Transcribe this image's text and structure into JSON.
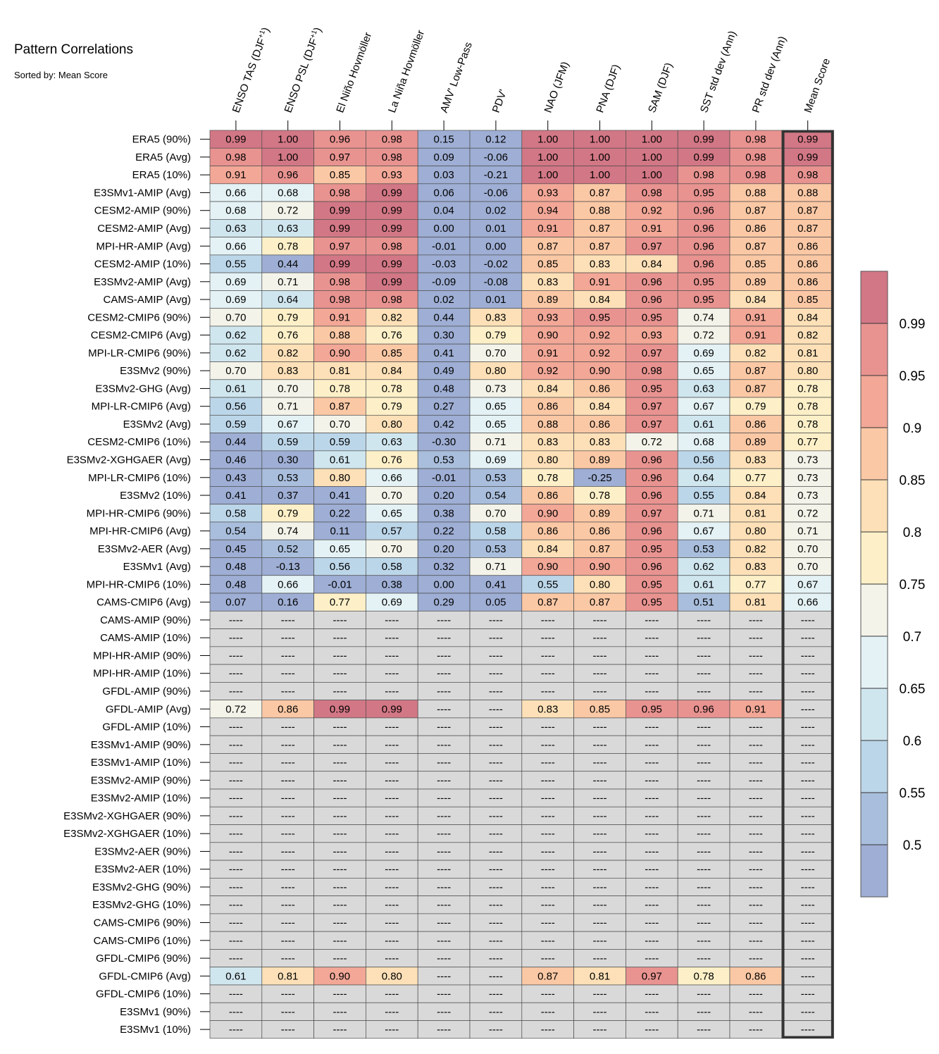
{
  "chart_data": {
    "type": "heatmap",
    "title": "Pattern Correlations",
    "subtitle": "Sorted by: Mean Score",
    "columns": [
      {
        "base": "ENSO TAS (DJF",
        "sup": "+1",
        "tail": ")"
      },
      {
        "base": "ENSO PSL (DJF",
        "sup": "+1",
        "tail": ")"
      },
      {
        "base": "El Niño Hovmöller",
        "sup": "",
        "tail": ""
      },
      {
        "base": "La Niña Hovmöller",
        "sup": "",
        "tail": ""
      },
      {
        "base": "AMV' Low-Pass",
        "sup": "",
        "tail": ""
      },
      {
        "base": "PDV'",
        "sup": "",
        "tail": ""
      },
      {
        "base": "NAO (JFM)",
        "sup": "",
        "tail": ""
      },
      {
        "base": "PNA (DJF)",
        "sup": "",
        "tail": ""
      },
      {
        "base": "SAM (DJF)",
        "sup": "",
        "tail": ""
      },
      {
        "base": "SST std dev (Ann)",
        "sup": "",
        "tail": ""
      },
      {
        "base": "PR std dev (Ann)",
        "sup": "",
        "tail": ""
      },
      {
        "base": "Mean Score",
        "sup": "",
        "tail": ""
      }
    ],
    "missing_label": "----",
    "highlighted_column": "Mean Score",
    "rows": [
      {
        "label": "ERA5 (90%)",
        "values": [
          0.99,
          1.0,
          0.96,
          0.98,
          0.15,
          0.12,
          1.0,
          1.0,
          1.0,
          0.99,
          0.98,
          0.99
        ]
      },
      {
        "label": "ERA5 (Avg)",
        "values": [
          0.98,
          1.0,
          0.97,
          0.98,
          0.09,
          -0.06,
          1.0,
          1.0,
          1.0,
          0.99,
          0.98,
          0.99
        ]
      },
      {
        "label": "ERA5 (10%)",
        "values": [
          0.91,
          0.96,
          0.85,
          0.93,
          0.03,
          -0.21,
          1.0,
          1.0,
          1.0,
          0.98,
          0.98,
          0.98
        ]
      },
      {
        "label": "E3SMv1-AMIP (Avg)",
        "values": [
          0.66,
          0.68,
          0.98,
          0.99,
          0.06,
          -0.06,
          0.93,
          0.87,
          0.98,
          0.95,
          0.88,
          0.88
        ]
      },
      {
        "label": "CESM2-AMIP (90%)",
        "values": [
          0.68,
          0.72,
          0.99,
          0.99,
          0.04,
          0.02,
          0.94,
          0.88,
          0.92,
          0.96,
          0.87,
          0.87
        ]
      },
      {
        "label": "CESM2-AMIP (Avg)",
        "values": [
          0.63,
          0.63,
          0.99,
          0.99,
          -0.0,
          0.01,
          0.91,
          0.87,
          0.91,
          0.96,
          0.86,
          0.87
        ]
      },
      {
        "label": "MPI-HR-AMIP (Avg)",
        "values": [
          0.66,
          0.78,
          0.97,
          0.98,
          -0.01,
          -0.0,
          0.87,
          0.87,
          0.97,
          0.96,
          0.87,
          0.86
        ]
      },
      {
        "label": "CESM2-AMIP (10%)",
        "values": [
          0.55,
          0.44,
          0.99,
          0.99,
          -0.03,
          -0.02,
          0.85,
          0.83,
          0.84,
          0.96,
          0.85,
          0.86
        ]
      },
      {
        "label": "E3SMv2-AMIP (Avg)",
        "values": [
          0.69,
          0.71,
          0.98,
          0.99,
          -0.09,
          -0.08,
          0.83,
          0.91,
          0.96,
          0.95,
          0.89,
          0.86
        ]
      },
      {
        "label": "CAMS-AMIP (Avg)",
        "values": [
          0.69,
          0.64,
          0.98,
          0.98,
          0.02,
          0.01,
          0.89,
          0.84,
          0.96,
          0.95,
          0.84,
          0.85
        ]
      },
      {
        "label": "CESM2-CMIP6 (90%)",
        "values": [
          0.7,
          0.79,
          0.91,
          0.82,
          0.44,
          0.83,
          0.93,
          0.95,
          0.95,
          0.74,
          0.91,
          0.84
        ]
      },
      {
        "label": "CESM2-CMIP6 (Avg)",
        "values": [
          0.62,
          0.76,
          0.88,
          0.76,
          0.3,
          0.79,
          0.9,
          0.92,
          0.93,
          0.72,
          0.91,
          0.82
        ]
      },
      {
        "label": "MPI-LR-CMIP6 (90%)",
        "values": [
          0.62,
          0.82,
          0.9,
          0.85,
          0.41,
          0.7,
          0.91,
          0.92,
          0.97,
          0.69,
          0.82,
          0.81
        ]
      },
      {
        "label": "E3SMv2 (90%)",
        "values": [
          0.7,
          0.83,
          0.81,
          0.84,
          0.49,
          0.8,
          0.92,
          0.9,
          0.98,
          0.65,
          0.87,
          0.8
        ]
      },
      {
        "label": "E3SMv2-GHG (Avg)",
        "values": [
          0.61,
          0.7,
          0.78,
          0.78,
          0.48,
          0.73,
          0.84,
          0.86,
          0.95,
          0.63,
          0.87,
          0.78
        ]
      },
      {
        "label": "MPI-LR-CMIP6 (Avg)",
        "values": [
          0.56,
          0.71,
          0.87,
          0.79,
          0.27,
          0.65,
          0.86,
          0.84,
          0.97,
          0.67,
          0.79,
          0.78
        ]
      },
      {
        "label": "E3SMv2 (Avg)",
        "values": [
          0.59,
          0.67,
          0.7,
          0.8,
          0.42,
          0.65,
          0.88,
          0.86,
          0.97,
          0.61,
          0.86,
          0.78
        ]
      },
      {
        "label": "CESM2-CMIP6 (10%)",
        "values": [
          0.44,
          0.59,
          0.59,
          0.63,
          -0.3,
          0.71,
          0.83,
          0.83,
          0.72,
          0.68,
          0.89,
          0.77
        ]
      },
      {
        "label": "E3SMv2-XGHGAER (Avg)",
        "values": [
          0.46,
          0.3,
          0.61,
          0.76,
          0.53,
          0.69,
          0.8,
          0.89,
          0.96,
          0.56,
          0.83,
          0.73
        ]
      },
      {
        "label": "MPI-LR-CMIP6 (10%)",
        "values": [
          0.43,
          0.53,
          0.8,
          0.66,
          -0.01,
          0.53,
          0.78,
          -0.25,
          0.96,
          0.64,
          0.77,
          0.73
        ]
      },
      {
        "label": "E3SMv2 (10%)",
        "values": [
          0.41,
          0.37,
          0.41,
          0.7,
          0.2,
          0.54,
          0.86,
          0.78,
          0.96,
          0.55,
          0.84,
          0.73
        ]
      },
      {
        "label": "MPI-HR-CMIP6 (90%)",
        "values": [
          0.58,
          0.79,
          0.22,
          0.65,
          0.38,
          0.7,
          0.9,
          0.89,
          0.97,
          0.71,
          0.81,
          0.72
        ]
      },
      {
        "label": "MPI-HR-CMIP6 (Avg)",
        "values": [
          0.54,
          0.74,
          0.11,
          0.57,
          0.22,
          0.58,
          0.86,
          0.86,
          0.96,
          0.67,
          0.8,
          0.71
        ]
      },
      {
        "label": "E3SMv2-AER (Avg)",
        "values": [
          0.45,
          0.52,
          0.65,
          0.7,
          0.2,
          0.53,
          0.84,
          0.87,
          0.95,
          0.53,
          0.82,
          0.7
        ]
      },
      {
        "label": "E3SMv1 (Avg)",
        "values": [
          0.48,
          -0.13,
          0.56,
          0.58,
          0.32,
          0.71,
          0.9,
          0.9,
          0.96,
          0.62,
          0.83,
          0.7
        ]
      },
      {
        "label": "MPI-HR-CMIP6 (10%)",
        "values": [
          0.48,
          0.66,
          -0.01,
          0.38,
          0.0,
          0.41,
          0.55,
          0.8,
          0.95,
          0.61,
          0.77,
          0.67
        ]
      },
      {
        "label": "CAMS-CMIP6 (Avg)",
        "values": [
          0.07,
          0.16,
          0.77,
          0.69,
          0.29,
          0.05,
          0.87,
          0.87,
          0.95,
          0.51,
          0.81,
          0.66
        ]
      },
      {
        "label": "CAMS-AMIP (90%)",
        "values": [
          null,
          null,
          null,
          null,
          null,
          null,
          null,
          null,
          null,
          null,
          null,
          null
        ]
      },
      {
        "label": "CAMS-AMIP (10%)",
        "values": [
          null,
          null,
          null,
          null,
          null,
          null,
          null,
          null,
          null,
          null,
          null,
          null
        ]
      },
      {
        "label": "MPI-HR-AMIP (90%)",
        "values": [
          null,
          null,
          null,
          null,
          null,
          null,
          null,
          null,
          null,
          null,
          null,
          null
        ]
      },
      {
        "label": "MPI-HR-AMIP (10%)",
        "values": [
          null,
          null,
          null,
          null,
          null,
          null,
          null,
          null,
          null,
          null,
          null,
          null
        ]
      },
      {
        "label": "GFDL-AMIP (90%)",
        "values": [
          null,
          null,
          null,
          null,
          null,
          null,
          null,
          null,
          null,
          null,
          null,
          null
        ]
      },
      {
        "label": "GFDL-AMIP (Avg)",
        "values": [
          0.72,
          0.86,
          0.99,
          0.99,
          null,
          null,
          0.83,
          0.85,
          0.95,
          0.96,
          0.91,
          null
        ]
      },
      {
        "label": "GFDL-AMIP (10%)",
        "values": [
          null,
          null,
          null,
          null,
          null,
          null,
          null,
          null,
          null,
          null,
          null,
          null
        ]
      },
      {
        "label": "E3SMv1-AMIP (90%)",
        "values": [
          null,
          null,
          null,
          null,
          null,
          null,
          null,
          null,
          null,
          null,
          null,
          null
        ]
      },
      {
        "label": "E3SMv1-AMIP (10%)",
        "values": [
          null,
          null,
          null,
          null,
          null,
          null,
          null,
          null,
          null,
          null,
          null,
          null
        ]
      },
      {
        "label": "E3SMv2-AMIP (90%)",
        "values": [
          null,
          null,
          null,
          null,
          null,
          null,
          null,
          null,
          null,
          null,
          null,
          null
        ]
      },
      {
        "label": "E3SMv2-AMIP (10%)",
        "values": [
          null,
          null,
          null,
          null,
          null,
          null,
          null,
          null,
          null,
          null,
          null,
          null
        ]
      },
      {
        "label": "E3SMv2-XGHGAER (90%)",
        "values": [
          null,
          null,
          null,
          null,
          null,
          null,
          null,
          null,
          null,
          null,
          null,
          null
        ]
      },
      {
        "label": "E3SMv2-XGHGAER (10%)",
        "values": [
          null,
          null,
          null,
          null,
          null,
          null,
          null,
          null,
          null,
          null,
          null,
          null
        ]
      },
      {
        "label": "E3SMv2-AER (90%)",
        "values": [
          null,
          null,
          null,
          null,
          null,
          null,
          null,
          null,
          null,
          null,
          null,
          null
        ]
      },
      {
        "label": "E3SMv2-AER (10%)",
        "values": [
          null,
          null,
          null,
          null,
          null,
          null,
          null,
          null,
          null,
          null,
          null,
          null
        ]
      },
      {
        "label": "E3SMv2-GHG (90%)",
        "values": [
          null,
          null,
          null,
          null,
          null,
          null,
          null,
          null,
          null,
          null,
          null,
          null
        ]
      },
      {
        "label": "E3SMv2-GHG (10%)",
        "values": [
          null,
          null,
          null,
          null,
          null,
          null,
          null,
          null,
          null,
          null,
          null,
          null
        ]
      },
      {
        "label": "CAMS-CMIP6 (90%)",
        "values": [
          null,
          null,
          null,
          null,
          null,
          null,
          null,
          null,
          null,
          null,
          null,
          null
        ]
      },
      {
        "label": "CAMS-CMIP6 (10%)",
        "values": [
          null,
          null,
          null,
          null,
          null,
          null,
          null,
          null,
          null,
          null,
          null,
          null
        ]
      },
      {
        "label": "GFDL-CMIP6 (90%)",
        "values": [
          null,
          null,
          null,
          null,
          null,
          null,
          null,
          null,
          null,
          null,
          null,
          null
        ]
      },
      {
        "label": "GFDL-CMIP6 (Avg)",
        "values": [
          0.61,
          0.81,
          0.9,
          0.8,
          null,
          null,
          0.87,
          0.81,
          0.97,
          0.78,
          0.86,
          null
        ]
      },
      {
        "label": "GFDL-CMIP6 (10%)",
        "values": [
          null,
          null,
          null,
          null,
          null,
          null,
          null,
          null,
          null,
          null,
          null,
          null
        ]
      },
      {
        "label": "E3SMv1 (90%)",
        "values": [
          null,
          null,
          null,
          null,
          null,
          null,
          null,
          null,
          null,
          null,
          null,
          null
        ]
      },
      {
        "label": "E3SMv1 (10%)",
        "values": [
          null,
          null,
          null,
          null,
          null,
          null,
          null,
          null,
          null,
          null,
          null,
          null
        ]
      }
    ],
    "colorbar": {
      "levels": [
        0.5,
        0.55,
        0.6,
        0.65,
        0.7,
        0.75,
        0.8,
        0.85,
        0.9,
        0.95,
        0.99
      ],
      "tick_labels": [
        "0.5",
        "0.55",
        "0.6",
        "0.65",
        "0.7",
        "0.75",
        "0.8",
        "0.85",
        "0.9",
        "0.95",
        "0.99"
      ],
      "colors": [
        "#9eaed4",
        "#a9bedc",
        "#bcd6e9",
        "#d0e6ef",
        "#e4f2f5",
        "#f3f3e9",
        "#fdf0c8",
        "#fde0b7",
        "#fbc8a5",
        "#f2a797",
        "#e89390",
        "#d27785"
      ],
      "missing_color": "#d9d9d9"
    }
  }
}
